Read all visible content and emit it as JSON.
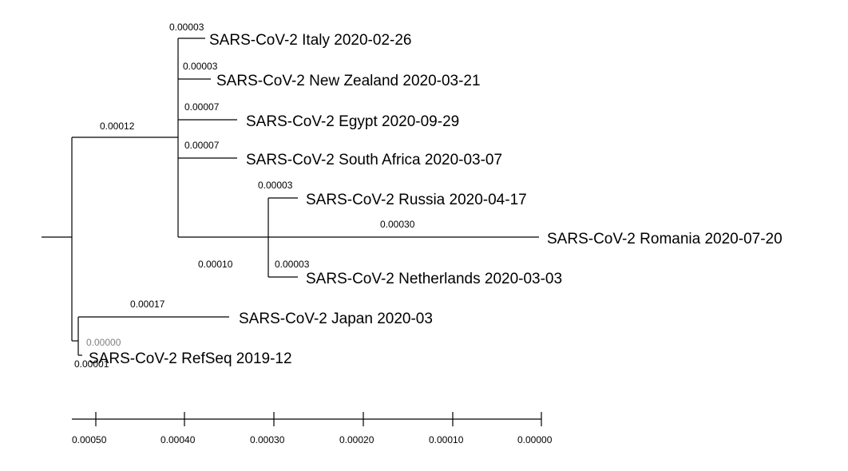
{
  "tree": {
    "leaves": [
      {
        "name": "SARS-CoV-2 Italy 2020-02-26",
        "branch_length": "0.00003"
      },
      {
        "name": "SARS-CoV-2 New Zealand 2020-03-21",
        "branch_length": "0.00003"
      },
      {
        "name": "SARS-CoV-2 Egypt 2020-09-29",
        "branch_length": "0.00007"
      },
      {
        "name": "SARS-CoV-2 South Africa 2020-03-07",
        "branch_length": "0.00007"
      },
      {
        "name": "SARS-CoV-2 Russia 2020-04-17",
        "branch_length": "0.00003"
      },
      {
        "name": "SARS-CoV-2 Romania 2020-07-20",
        "branch_length": "0.00030"
      },
      {
        "name": "SARS-CoV-2 Netherlands 2020-03-03",
        "branch_length": "0.00003"
      },
      {
        "name": "SARS-CoV-2 Japan 2020-03",
        "branch_length": "0.00017"
      },
      {
        "name": "SARS-CoV-2 RefSeq 2019-12",
        "branch_length": "0.00001"
      }
    ],
    "internal_branches": [
      {
        "clade": "main",
        "branch_length": "0.00012"
      },
      {
        "clade": "russia-netherlands",
        "branch_length": "0.00010"
      },
      {
        "clade": "japan-refseq",
        "branch_length": "0.00000"
      }
    ]
  },
  "scale": {
    "ticks": [
      "0.00050",
      "0.00040",
      "0.00030",
      "0.00020",
      "0.00010",
      "0.00000"
    ]
  }
}
